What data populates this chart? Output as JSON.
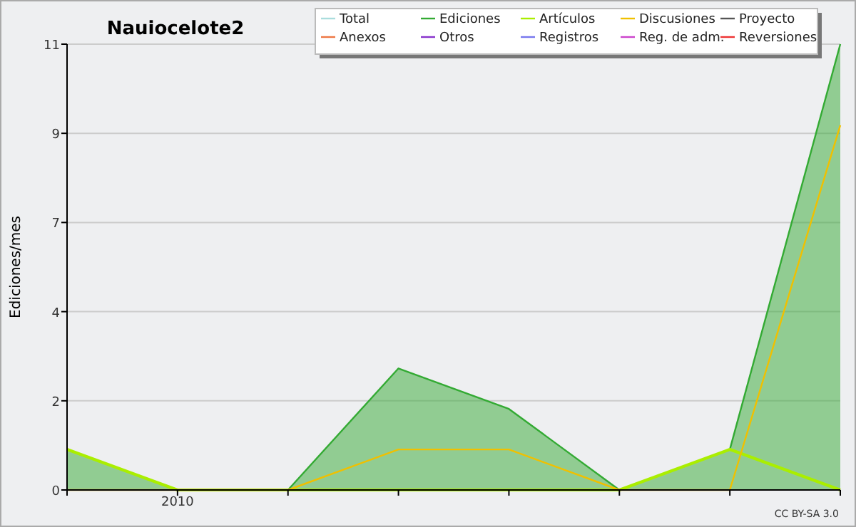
{
  "chart_data": {
    "type": "line",
    "title": "Nauiocelote2",
    "ylabel": "Ediciones/mes",
    "categories": [
      null,
      "2010",
      null,
      null,
      null,
      null,
      null,
      null
    ],
    "series": [
      {
        "name": "Total",
        "color": "#aadddd",
        "values": [
          null,
          null,
          null,
          null,
          null,
          null,
          null,
          null
        ]
      },
      {
        "name": "Ediciones",
        "color": "#33aa33",
        "type": "area",
        "values": [
          1,
          0,
          0,
          3,
          2,
          0,
          1,
          11
        ]
      },
      {
        "name": "Artículos",
        "color": "#aaee00",
        "values": [
          1,
          0,
          0,
          0,
          0,
          0,
          1,
          0
        ]
      },
      {
        "name": "Discusiones",
        "color": "#f0c000",
        "values": [
          0,
          0,
          0,
          1,
          1,
          0,
          0,
          9
        ]
      },
      {
        "name": "Proyecto",
        "color": "#555555",
        "values": [
          null,
          null,
          null,
          null,
          null,
          null,
          null,
          null
        ]
      },
      {
        "name": "Anexos",
        "color": "#ee7744",
        "values": [
          null,
          null,
          null,
          null,
          null,
          null,
          null,
          null
        ]
      },
      {
        "name": "Otros",
        "color": "#8833cc",
        "values": [
          null,
          null,
          null,
          null,
          null,
          null,
          null,
          null
        ]
      },
      {
        "name": "Registros",
        "color": "#7777ee",
        "values": [
          null,
          null,
          null,
          null,
          null,
          null,
          null,
          null
        ]
      },
      {
        "name": "Reg. de adm.",
        "color": "#cc44cc",
        "values": [
          null,
          null,
          null,
          null,
          null,
          null,
          null,
          null
        ]
      },
      {
        "name": "Reversiones",
        "color": "#ee3333",
        "values": [
          null,
          null,
          null,
          null,
          null,
          null,
          null,
          null
        ]
      }
    ],
    "ylim": [
      0,
      11
    ],
    "yticks": [
      0,
      {
        "value": 2.2,
        "label": "2"
      },
      {
        "value": 4.4,
        "label": "4"
      },
      {
        "value": 6.6,
        "label": "7"
      },
      {
        "value": 8.8,
        "label": "9"
      },
      11
    ],
    "grid": "y",
    "legend": "top right",
    "annotations": [
      "CC BY-SA 3.0"
    ]
  }
}
